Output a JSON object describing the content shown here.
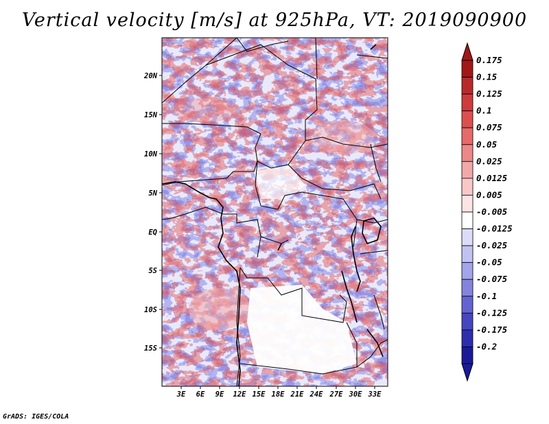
{
  "title": "Vertical velocity [m/s] at 925hPa, VT: 2019090900",
  "footer": "GrADS: IGES/COLA",
  "map": {
    "lon_range": [
      0,
      35
    ],
    "lat_range": [
      -20,
      25
    ],
    "lat_ticks": [
      "20N",
      "15N",
      "10N",
      "5N",
      "EQ",
      "5S",
      "10S",
      "15S"
    ],
    "lon_ticks": [
      "3E",
      "6E",
      "9E",
      "12E",
      "15E",
      "18E",
      "21E",
      "24E",
      "27E",
      "30E",
      "33E"
    ]
  },
  "colorbar": {
    "labels": [
      "0.175",
      "0.15",
      "0.125",
      "0.1",
      "0.075",
      "0.05",
      "0.025",
      "0.0125",
      "0.005",
      "-0.005",
      "-0.0125",
      "-0.025",
      "-0.05",
      "-0.075",
      "-0.1",
      "-0.125",
      "-0.175",
      "-0.2"
    ],
    "colors": [
      "#a01818",
      "#b82a2a",
      "#cc3c3c",
      "#dc5050",
      "#e66a6a",
      "#ec8888",
      "#f2a8a8",
      "#f8c8c8",
      "#fce4e4",
      "#ffffff",
      "#dcdcf8",
      "#c2c2f2",
      "#a4a4ea",
      "#8484de",
      "#6464d0",
      "#4646c0",
      "#2e2ead",
      "#1a1a98"
    ],
    "top_color": "#a01818",
    "bottom_color": "#1a1a98"
  }
}
